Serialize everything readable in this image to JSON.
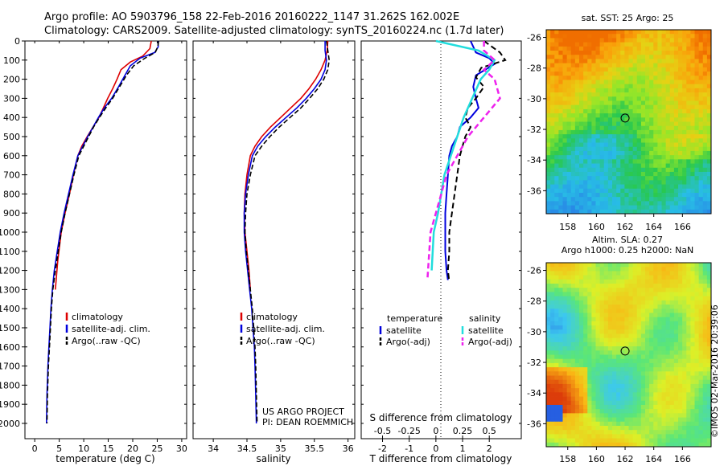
{
  "header": {
    "line1": "Argo profile: AO 5903796_158 22-Feb-2016 20160222_1147 31.262S 162.002E",
    "line2": "Climatology: CARS2009. Satellite-adjusted climatology: synTS_20160224.nc (1.7d later)"
  },
  "footer": {
    "project": "US ARGO PROJECT",
    "pi": "PI: DEAN ROEMMICH",
    "credit": "©IMOS 02-Mar-2016 20:39:06"
  },
  "colors": {
    "climatology": "#dd0000",
    "satellite": "#0000dd",
    "argo": "#000000",
    "satellite_salinity": "#22dddd",
    "argo_salinity": "#ee22ee"
  },
  "chart_data": [
    {
      "type": "line",
      "xlabel": "temperature (deg C)",
      "ylabel": "",
      "xlim": [
        -2,
        31
      ],
      "ylim": [
        2080,
        0
      ],
      "xticks": [
        0,
        5,
        10,
        15,
        20,
        25,
        30
      ],
      "yticks": [
        0,
        100,
        200,
        300,
        400,
        500,
        600,
        700,
        800,
        900,
        1000,
        1100,
        1200,
        1300,
        1400,
        1500,
        1600,
        1700,
        1800,
        1900,
        2000
      ],
      "legend": [
        "climatology",
        "satellite-adj. clim.",
        "Argo(..raw -QC)"
      ],
      "series": [
        {
          "name": "climatology",
          "x": [
            23.8,
            23.5,
            22,
            19.5,
            17.6,
            16.8,
            15.9,
            14.9,
            14.0,
            13.1,
            11.9,
            10.7,
            9.6,
            8.8,
            7.9,
            7.1,
            6.2,
            5.4,
            4.7,
            4.2
          ],
          "y": [
            0,
            40,
            80,
            110,
            150,
            200,
            250,
            300,
            350,
            400,
            450,
            500,
            550,
            600,
            700,
            800,
            900,
            1000,
            1150,
            1300
          ]
        },
        {
          "name": "satellite-adj. clim.",
          "x": [
            25.2,
            25.2,
            24.5,
            21.5,
            19.5,
            18.4,
            17.1,
            15.7,
            14.2,
            13.0,
            11.9,
            10.8,
            9.8,
            8.8,
            7.8,
            6.9,
            6.0,
            5.2,
            4.6,
            4.0,
            3.6,
            3.3,
            3.1,
            2.9,
            2.7,
            2.5,
            2.4
          ],
          "y": [
            0,
            30,
            60,
            90,
            130,
            180,
            240,
            300,
            350,
            400,
            450,
            500,
            550,
            600,
            700,
            800,
            900,
            1000,
            1100,
            1200,
            1300,
            1400,
            1500,
            1600,
            1700,
            1850,
            2000
          ]
        },
        {
          "name": "Argo(..raw -QC)",
          "x": [
            25.3,
            25.1,
            24.6,
            22.5,
            20.2,
            18.7,
            17.3,
            15.9,
            14.5,
            13.2,
            12.0,
            11.0,
            10.0,
            9.0,
            8.0,
            7.1,
            6.2,
            5.4,
            4.8,
            4.2,
            3.7,
            3.4,
            3.2,
            3.0,
            2.8,
            2.6,
            2.5
          ],
          "y": [
            0,
            30,
            60,
            90,
            130,
            180,
            240,
            300,
            350,
            400,
            450,
            500,
            550,
            600,
            700,
            800,
            900,
            1000,
            1100,
            1200,
            1300,
            1400,
            1500,
            1600,
            1700,
            1850,
            2000
          ]
        }
      ]
    },
    {
      "type": "line",
      "xlabel": "salinity",
      "ylabel": "",
      "xlim": [
        33.7,
        36.1
      ],
      "ylim": [
        2080,
        0
      ],
      "xticks": [
        34,
        34.5,
        35,
        35.5,
        36
      ],
      "yticks": [],
      "legend": [
        "climatology",
        "satellite-adj. clim.",
        "Argo(..raw -QC)"
      ],
      "series": [
        {
          "name": "climatology",
          "x": [
            35.7,
            35.69,
            35.66,
            35.6,
            35.52,
            35.42,
            35.3,
            35.15,
            35.0,
            34.85,
            34.72,
            34.62,
            34.55,
            34.5,
            34.47,
            34.46,
            34.47,
            34.5,
            34.53,
            34.55
          ],
          "y": [
            0,
            50,
            100,
            150,
            200,
            250,
            300,
            350,
            400,
            450,
            500,
            550,
            600,
            700,
            800,
            900,
            1000,
            1100,
            1200,
            1300
          ]
        },
        {
          "name": "satellite-adj. clim.",
          "x": [
            35.66,
            35.66,
            35.68,
            35.66,
            35.6,
            35.5,
            35.38,
            35.24,
            35.08,
            34.92,
            34.78,
            34.66,
            34.58,
            34.52,
            34.48,
            34.46,
            34.46,
            34.48,
            34.51,
            34.54,
            34.57,
            34.59,
            34.61,
            34.62,
            34.63,
            34.64
          ],
          "y": [
            0,
            50,
            100,
            150,
            200,
            250,
            300,
            350,
            400,
            450,
            500,
            550,
            600,
            700,
            800,
            900,
            1000,
            1100,
            1200,
            1300,
            1400,
            1500,
            1600,
            1700,
            1850,
            2000
          ]
        },
        {
          "name": "Argo(..raw -QC)",
          "x": [
            35.68,
            35.7,
            35.72,
            35.7,
            35.64,
            35.55,
            35.43,
            35.3,
            35.14,
            34.98,
            34.84,
            34.72,
            34.62,
            34.55,
            34.5,
            34.48,
            34.47,
            34.49,
            34.52,
            34.55,
            34.58,
            34.6,
            34.62,
            34.63,
            34.64,
            34.65
          ],
          "y": [
            0,
            50,
            100,
            150,
            200,
            250,
            300,
            350,
            400,
            450,
            500,
            550,
            600,
            700,
            800,
            900,
            1000,
            1100,
            1200,
            1300,
            1400,
            1500,
            1600,
            1700,
            1850,
            2000
          ]
        }
      ]
    },
    {
      "type": "line",
      "xlabel": "T difference from climatology",
      "title_bottom": "S difference from climatology",
      "ylabel": "",
      "xlim": [
        -2.8,
        3.2
      ],
      "ylim": [
        2080,
        0
      ],
      "xticks": [
        -2,
        -1,
        0,
        1,
        2
      ],
      "sticks": [
        -0.5,
        -0.25,
        0,
        0.25,
        0.5
      ],
      "legend_temperature_header": "temperature",
      "legend_salinity_header": "salinity",
      "legend_temperature": [
        "satellite",
        "Argo(-adj)"
      ],
      "legend_salinity": [
        "satellite",
        "Argo(-adj)"
      ],
      "series": [
        {
          "name": "satellite",
          "group": "temperature",
          "x": [
            1.3,
            1.5,
            2.0,
            2.2,
            1.5,
            1.4,
            1.5,
            1.6,
            1.3,
            0.9,
            0.8,
            0.6,
            0.5,
            0.45,
            0.4,
            0.35,
            0.35,
            0.35,
            0.4,
            0.45
          ],
          "y": [
            0,
            60,
            90,
            120,
            180,
            240,
            300,
            350,
            400,
            450,
            500,
            550,
            600,
            700,
            800,
            900,
            1000,
            1100,
            1200,
            1250
          ]
        },
        {
          "name": "Argo(-adj)",
          "group": "temperature",
          "x": [
            1.8,
            2.4,
            2.6,
            1.7,
            1.5,
            1.8,
            1.5,
            1.2,
            1.1,
            1.3,
            1.1,
            1.0,
            0.9,
            0.8,
            0.7,
            0.6,
            0.5,
            0.5,
            0.45,
            0.5
          ],
          "y": [
            0,
            60,
            100,
            140,
            190,
            240,
            300,
            350,
            400,
            450,
            500,
            550,
            600,
            700,
            800,
            900,
            1000,
            1100,
            1200,
            1260
          ]
        },
        {
          "name": "satellite",
          "group": "salinity",
          "x": [
            0,
            0.4,
            0.55,
            0.5,
            0.42,
            0.34,
            0.26,
            0.2,
            0.14,
            0.08,
            0.05,
            0.02,
            -0.02,
            -0.04
          ],
          "y": [
            0,
            50,
            100,
            150,
            200,
            300,
            400,
            500,
            600,
            700,
            800,
            900,
            1000,
            1200
          ]
        },
        {
          "name": "Argo(-adj)",
          "group": "salinity",
          "x": [
            0.45,
            0.45,
            0.55,
            0.45,
            0.55,
            0.6,
            0.45,
            0.3,
            0.2,
            0.1,
            0.05,
            -0.05,
            -0.08
          ],
          "y": [
            0,
            50,
            100,
            150,
            200,
            300,
            400,
            500,
            600,
            700,
            800,
            1000,
            1250
          ]
        }
      ]
    },
    {
      "type": "heatmap",
      "title": "sat. SST: 25   Argo: 25",
      "xlim": [
        156.5,
        168
      ],
      "ylim": [
        -37.5,
        -25.5
      ],
      "xticks": [
        158,
        160,
        162,
        164,
        166
      ],
      "yticks": [
        -26,
        -28,
        -30,
        -32,
        -34,
        -36
      ],
      "marker": {
        "lon": 162.0,
        "lat": -31.26
      }
    },
    {
      "type": "heatmap",
      "title": "Altim. SLA: 0.27",
      "subtitle": "Argo h1000: 0.25 h2000: NaN",
      "xlim": [
        156.5,
        168
      ],
      "ylim": [
        -37.5,
        -25.5
      ],
      "xticks": [
        158,
        160,
        162,
        164,
        166
      ],
      "yticks": [
        -26,
        -28,
        -30,
        -32,
        -34,
        -36
      ],
      "marker": {
        "lon": 162.0,
        "lat": -31.26
      }
    }
  ]
}
